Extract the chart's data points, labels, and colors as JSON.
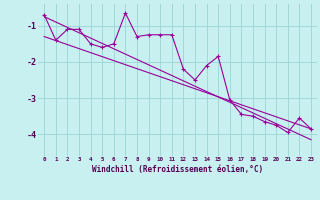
{
  "x_hours": [
    0,
    1,
    2,
    3,
    4,
    5,
    6,
    7,
    8,
    9,
    10,
    11,
    12,
    13,
    14,
    15,
    16,
    17,
    18,
    19,
    20,
    21,
    22,
    23
  ],
  "windchill_line1": [
    -0.7,
    -1.4,
    -1.1,
    -1.1,
    -1.5,
    -1.6,
    -1.5,
    -0.65,
    -1.3,
    -1.25,
    -1.25,
    -1.25,
    -2.2,
    -2.5,
    -2.1,
    -1.85,
    -3.05,
    -3.45,
    -3.5,
    -3.65,
    -3.75,
    -3.95,
    -3.55,
    -3.85
  ],
  "trend_line_x": [
    0,
    23
  ],
  "trend_line_y": [
    -0.75,
    -4.15
  ],
  "trend_line2_x": [
    0,
    23
  ],
  "trend_line2_y": [
    -1.3,
    -3.85
  ],
  "background_color": "#c8f0f0",
  "grid_color": "#a0d8d8",
  "line_color": "#990099",
  "xlabel": "Windchill (Refroidissement éolien,°C)",
  "ylim": [
    -4.6,
    -0.4
  ],
  "xlim": [
    -0.5,
    23.5
  ],
  "yticks": [
    -4,
    -3,
    -2,
    -1
  ],
  "xticks": [
    0,
    1,
    2,
    3,
    4,
    5,
    6,
    7,
    8,
    9,
    10,
    11,
    12,
    13,
    14,
    15,
    16,
    17,
    18,
    19,
    20,
    21,
    22,
    23
  ]
}
